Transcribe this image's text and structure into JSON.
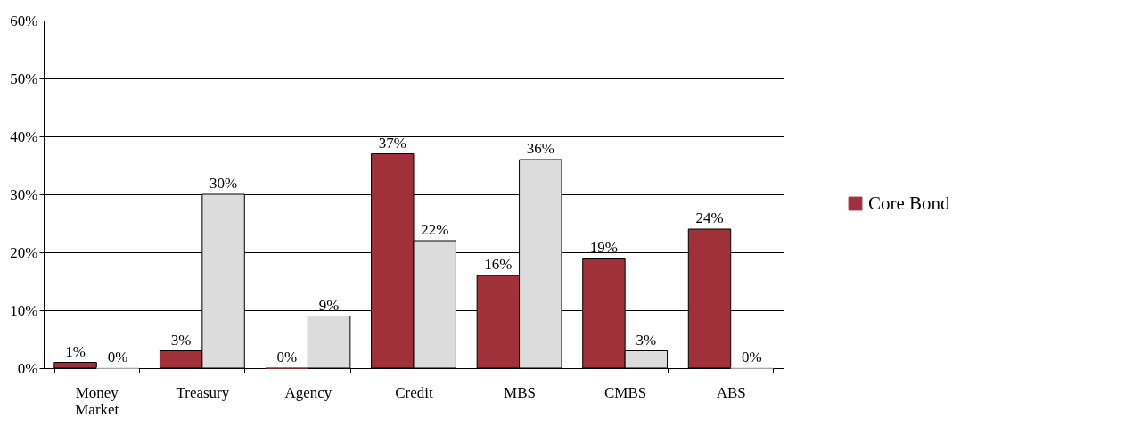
{
  "chart_data": {
    "type": "bar",
    "categories": [
      "Money Market",
      "Treasury",
      "Agency",
      "Credit",
      "MBS",
      "CMBS",
      "ABS"
    ],
    "series": [
      {
        "name": "Core Bond",
        "color": "#a0303a",
        "values": [
          1,
          3,
          0,
          37,
          16,
          19,
          24
        ],
        "value_labels": [
          "1%",
          "3%",
          "0%",
          "37%",
          "16%",
          "19%",
          "24%"
        ]
      },
      {
        "color": "#dcdcdc",
        "values": [
          0,
          30,
          9,
          22,
          36,
          3,
          0
        ],
        "value_labels": [
          "0%",
          "30%",
          "9%",
          "22%",
          "36%",
          "3%",
          "0%"
        ]
      }
    ],
    "ylim": [
      0,
      60
    ],
    "yticks": [
      {
        "value": 0,
        "label": "0%"
      },
      {
        "value": 10,
        "label": "10%"
      },
      {
        "value": 20,
        "label": "20%"
      },
      {
        "value": 30,
        "label": "30%"
      },
      {
        "value": 40,
        "label": "40%"
      },
      {
        "value": 50,
        "label": "50%"
      },
      {
        "value": 60,
        "label": "60%"
      }
    ],
    "grid": "y",
    "legend": "right"
  }
}
